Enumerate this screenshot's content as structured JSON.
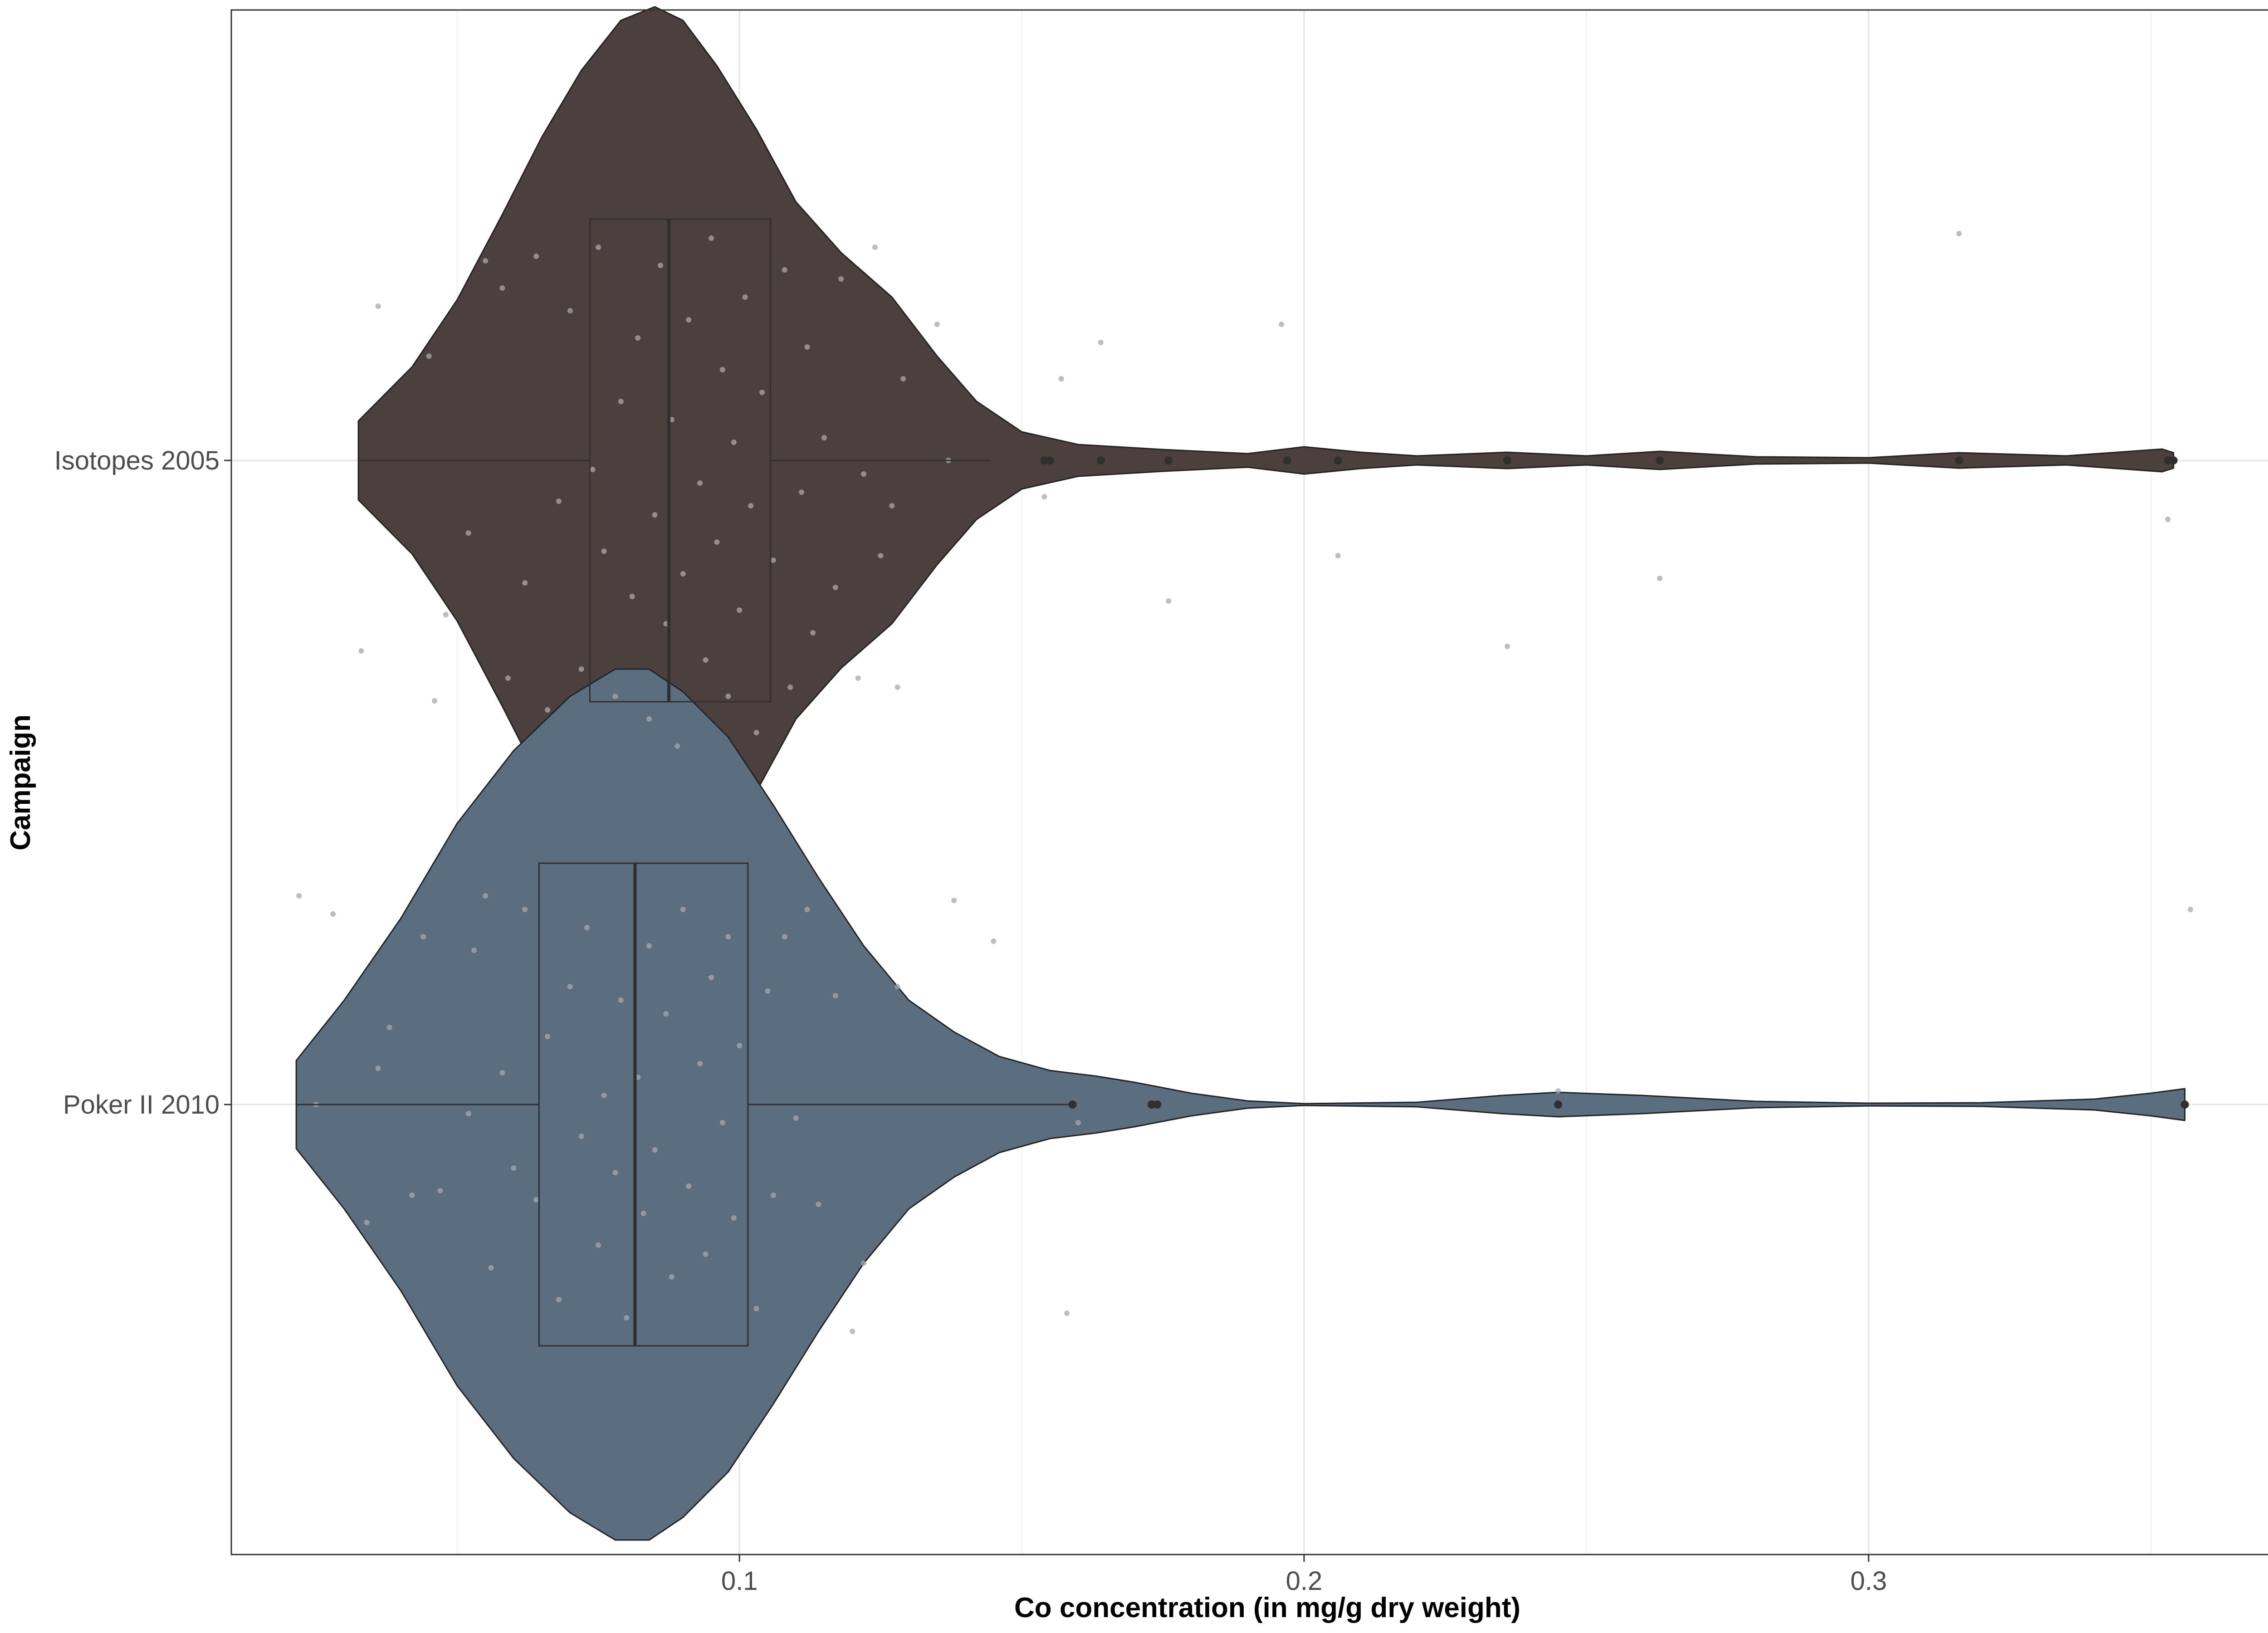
{
  "chart_data": {
    "type": "violin",
    "orientation": "horizontal",
    "xlabel": "Co concentration (in mg/g dry weight)",
    "ylabel": "Campaign",
    "xlim": [
      0.01,
      0.377
    ],
    "x_ticks": [
      0.1,
      0.2,
      0.3
    ],
    "x_tick_labels": [
      "0.1",
      "0.2",
      "0.3"
    ],
    "grid": true,
    "legend": "none",
    "series": [
      {
        "name": "Isotopes 2005",
        "color": "#4c403e",
        "box": {
          "whisker_low": 0.0325,
          "q1": 0.0735,
          "median": 0.0875,
          "q3": 0.1055,
          "whisker_high": 0.1445
        },
        "outliers": [
          0.154,
          0.155,
          0.164,
          0.176,
          0.197,
          0.206,
          0.236,
          0.263,
          0.316,
          0.353,
          0.354
        ],
        "density": [
          [
            0.0325,
            0.087
          ],
          [
            0.042,
            0.206
          ],
          [
            0.05,
            0.354
          ],
          [
            0.058,
            0.542
          ],
          [
            0.065,
            0.713
          ],
          [
            0.072,
            0.86
          ],
          [
            0.079,
            0.97
          ],
          [
            0.085,
            1.0
          ],
          [
            0.09,
            0.97
          ],
          [
            0.096,
            0.87
          ],
          [
            0.103,
            0.73
          ],
          [
            0.11,
            0.57
          ],
          [
            0.118,
            0.458
          ],
          [
            0.127,
            0.36
          ],
          [
            0.135,
            0.23
          ],
          [
            0.142,
            0.13
          ],
          [
            0.15,
            0.063
          ],
          [
            0.16,
            0.035
          ],
          [
            0.175,
            0.024
          ],
          [
            0.19,
            0.015
          ],
          [
            0.2,
            0.03
          ],
          [
            0.21,
            0.018
          ],
          [
            0.22,
            0.01
          ],
          [
            0.236,
            0.018
          ],
          [
            0.25,
            0.01
          ],
          [
            0.263,
            0.02
          ],
          [
            0.28,
            0.008
          ],
          [
            0.3,
            0.006
          ],
          [
            0.316,
            0.017
          ],
          [
            0.335,
            0.01
          ],
          [
            0.352,
            0.025
          ],
          [
            0.354,
            0.017
          ]
        ],
        "jitter": [
          [
            0.033,
            0.42
          ],
          [
            0.036,
            -0.34
          ],
          [
            0.046,
            0.53
          ],
          [
            0.045,
            -0.23
          ],
          [
            0.048,
            0.34
          ],
          [
            0.052,
            0.16
          ],
          [
            0.055,
            -0.44
          ],
          [
            0.058,
            -0.38
          ],
          [
            0.059,
            0.48
          ],
          [
            0.062,
            0.27
          ],
          [
            0.064,
            -0.45
          ],
          [
            0.066,
            0.55
          ],
          [
            0.068,
            0.09
          ],
          [
            0.07,
            -0.33
          ],
          [
            0.072,
            0.46
          ],
          [
            0.074,
            0.02
          ],
          [
            0.075,
            -0.47
          ],
          [
            0.076,
            0.2
          ],
          [
            0.078,
            0.52
          ],
          [
            0.079,
            -0.13
          ],
          [
            0.081,
            0.3
          ],
          [
            0.082,
            -0.27
          ],
          [
            0.084,
            0.57
          ],
          [
            0.085,
            0.12
          ],
          [
            0.086,
            -0.43
          ],
          [
            0.087,
            0.36
          ],
          [
            0.088,
            -0.09
          ],
          [
            0.089,
            0.63
          ],
          [
            0.09,
            0.25
          ],
          [
            0.091,
            -0.31
          ],
          [
            0.093,
            0.05
          ],
          [
            0.094,
            0.44
          ],
          [
            0.095,
            -0.49
          ],
          [
            0.096,
            0.18
          ],
          [
            0.097,
            -0.2
          ],
          [
            0.098,
            0.52
          ],
          [
            0.099,
            -0.04
          ],
          [
            0.1,
            0.33
          ],
          [
            0.101,
            -0.36
          ],
          [
            0.102,
            0.1
          ],
          [
            0.103,
            0.6
          ],
          [
            0.104,
            -0.15
          ],
          [
            0.106,
            0.22
          ],
          [
            0.108,
            -0.42
          ],
          [
            0.109,
            0.5
          ],
          [
            0.111,
            0.07
          ],
          [
            0.112,
            -0.25
          ],
          [
            0.113,
            0.38
          ],
          [
            0.115,
            -0.05
          ],
          [
            0.117,
            0.28
          ],
          [
            0.118,
            -0.4
          ],
          [
            0.121,
            0.48
          ],
          [
            0.122,
            0.03
          ],
          [
            0.124,
            -0.47
          ],
          [
            0.125,
            0.21
          ],
          [
            0.127,
            0.1
          ],
          [
            0.128,
            0.5
          ],
          [
            0.129,
            -0.18
          ],
          [
            0.135,
            -0.3
          ],
          [
            0.137,
            0.0
          ],
          [
            0.154,
            0.08
          ],
          [
            0.157,
            -0.18
          ],
          [
            0.164,
            -0.26
          ],
          [
            0.176,
            0.31
          ],
          [
            0.196,
            -0.3
          ],
          [
            0.206,
            0.21
          ],
          [
            0.236,
            0.41
          ],
          [
            0.263,
            0.26
          ],
          [
            0.316,
            -0.5
          ],
          [
            0.353,
            0.13
          ]
        ]
      },
      {
        "name": "Poker II 2010",
        "color": "#5b6e7f",
        "box": {
          "whisker_low": 0.0215,
          "q1": 0.0645,
          "median": 0.0815,
          "q3": 0.1015,
          "whisker_high": 0.159
        },
        "outliers": [
          0.159,
          0.173,
          0.174,
          0.245,
          0.356
        ],
        "density": [
          [
            0.0215,
            0.097
          ],
          [
            0.03,
            0.23
          ],
          [
            0.04,
            0.41
          ],
          [
            0.05,
            0.62
          ],
          [
            0.06,
            0.78
          ],
          [
            0.07,
            0.9
          ],
          [
            0.078,
            0.96
          ],
          [
            0.084,
            0.96
          ],
          [
            0.09,
            0.91
          ],
          [
            0.098,
            0.81
          ],
          [
            0.106,
            0.66
          ],
          [
            0.114,
            0.5
          ],
          [
            0.122,
            0.35
          ],
          [
            0.13,
            0.23
          ],
          [
            0.138,
            0.16
          ],
          [
            0.146,
            0.106
          ],
          [
            0.155,
            0.075
          ],
          [
            0.163,
            0.063
          ],
          [
            0.17,
            0.049
          ],
          [
            0.18,
            0.025
          ],
          [
            0.19,
            0.008
          ],
          [
            0.2,
            0.002
          ],
          [
            0.22,
            0.005
          ],
          [
            0.235,
            0.02
          ],
          [
            0.245,
            0.027
          ],
          [
            0.26,
            0.02
          ],
          [
            0.28,
            0.007
          ],
          [
            0.3,
            0.003
          ],
          [
            0.32,
            0.004
          ],
          [
            0.34,
            0.012
          ],
          [
            0.35,
            0.025
          ],
          [
            0.356,
            0.035
          ]
        ],
        "jitter": [
          [
            0.022,
            -0.46
          ],
          [
            0.025,
            0.0
          ],
          [
            0.028,
            -0.42
          ],
          [
            0.034,
            0.26
          ],
          [
            0.036,
            -0.08
          ],
          [
            0.038,
            -0.17
          ],
          [
            0.042,
            0.2
          ],
          [
            0.044,
            -0.37
          ],
          [
            0.047,
            0.19
          ],
          [
            0.052,
            0.02
          ],
          [
            0.053,
            -0.34
          ],
          [
            0.055,
            -0.46
          ],
          [
            0.056,
            0.36
          ],
          [
            0.058,
            -0.07
          ],
          [
            0.06,
            0.14
          ],
          [
            0.062,
            -0.43
          ],
          [
            0.064,
            0.21
          ],
          [
            0.066,
            -0.15
          ],
          [
            0.068,
            0.43
          ],
          [
            0.07,
            -0.26
          ],
          [
            0.072,
            0.07
          ],
          [
            0.073,
            -0.39
          ],
          [
            0.075,
            0.31
          ],
          [
            0.076,
            -0.02
          ],
          [
            0.078,
            0.15
          ],
          [
            0.079,
            -0.23
          ],
          [
            0.08,
            0.47
          ],
          [
            0.082,
            -0.06
          ],
          [
            0.083,
            0.24
          ],
          [
            0.084,
            -0.35
          ],
          [
            0.085,
            0.1
          ],
          [
            0.087,
            -0.2
          ],
          [
            0.088,
            0.38
          ],
          [
            0.09,
            -0.43
          ],
          [
            0.091,
            0.18
          ],
          [
            0.093,
            -0.09
          ],
          [
            0.094,
            0.33
          ],
          [
            0.095,
            -0.28
          ],
          [
            0.097,
            0.04
          ],
          [
            0.098,
            -0.37
          ],
          [
            0.099,
            0.25
          ],
          [
            0.1,
            -0.13
          ],
          [
            0.103,
            0.45
          ],
          [
            0.105,
            -0.25
          ],
          [
            0.106,
            0.2
          ],
          [
            0.108,
            -0.37
          ],
          [
            0.11,
            0.03
          ],
          [
            0.112,
            -0.43
          ],
          [
            0.114,
            0.22
          ],
          [
            0.117,
            -0.24
          ],
          [
            0.12,
            0.5
          ],
          [
            0.122,
            0.35
          ],
          [
            0.128,
            -0.26
          ],
          [
            0.138,
            -0.45
          ],
          [
            0.145,
            -0.36
          ],
          [
            0.158,
            0.46
          ],
          [
            0.16,
            0.04
          ],
          [
            0.174,
            0.0
          ],
          [
            0.245,
            -0.03
          ],
          [
            0.357,
            -0.43
          ]
        ]
      }
    ]
  }
}
